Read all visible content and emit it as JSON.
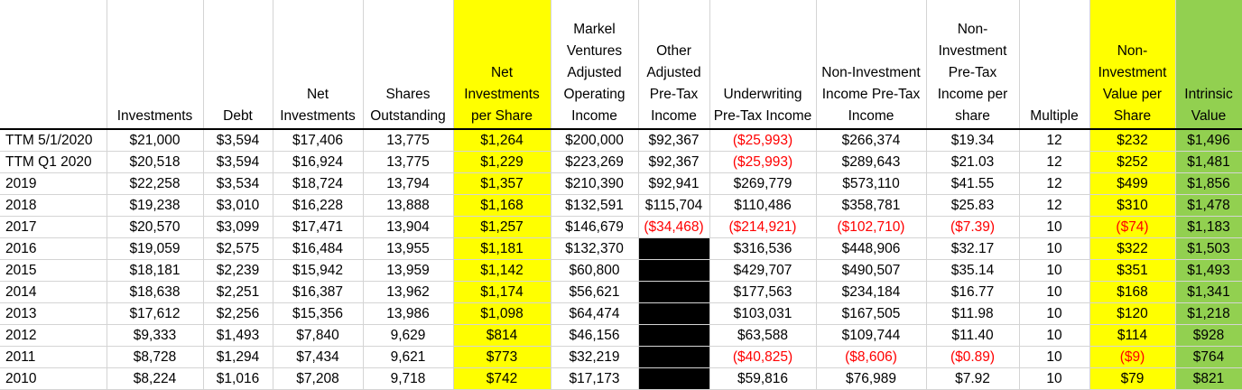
{
  "colors": {
    "highlight_yellow": "#ffff00",
    "highlight_green": "#92d050",
    "negative_text": "#ff0000",
    "blank_black": "#000000"
  },
  "columns": [
    {
      "key": "period",
      "header": ""
    },
    {
      "key": "investments",
      "header": "Investments"
    },
    {
      "key": "debt",
      "header": "Debt"
    },
    {
      "key": "net_investments",
      "header": "Net Investments"
    },
    {
      "key": "shares_outstanding",
      "header": "Shares Outstanding"
    },
    {
      "key": "net_inv_per_share",
      "header": "Net Investments per Share"
    },
    {
      "key": "markel_ventures",
      "header": "Markel Ventures Adjusted Operating Income"
    },
    {
      "key": "other_adjusted",
      "header": "Other Adjusted Pre-Tax Income"
    },
    {
      "key": "underwriting",
      "header": "Underwriting Pre-Tax Income"
    },
    {
      "key": "non_inv_income",
      "header": "Non-Investment Income Pre-Tax Income"
    },
    {
      "key": "non_inv_per_share",
      "header": "Non-Investment Pre-Tax Income per share"
    },
    {
      "key": "multiple",
      "header": "Multiple"
    },
    {
      "key": "non_inv_value_per_share",
      "header": "Non-Investment Value per Share"
    },
    {
      "key": "intrinsic_value",
      "header": "Intrinsic Value"
    }
  ],
  "rows": [
    {
      "cells": [
        "TTM 5/1/2020",
        "$21,000",
        "$3,594",
        "$17,406",
        "13,775",
        "$1,264",
        "$200,000",
        "$92,367",
        "($25,993)",
        "$266,374",
        "$19.34",
        "12",
        "$232",
        "$1,496"
      ]
    },
    {
      "cells": [
        "TTM Q1 2020",
        "$20,518",
        "$3,594",
        "$16,924",
        "13,775",
        "$1,229",
        "$223,269",
        "$92,367",
        "($25,993)",
        "$289,643",
        "$21.03",
        "12",
        "$252",
        "$1,481"
      ]
    },
    {
      "cells": [
        "2019",
        "$22,258",
        "$3,534",
        "$18,724",
        "13,794",
        "$1,357",
        "$210,390",
        "$92,941",
        "$269,779",
        "$573,110",
        "$41.55",
        "12",
        "$499",
        "$1,856"
      ]
    },
    {
      "cells": [
        "2018",
        "$19,238",
        "$3,010",
        "$16,228",
        "13,888",
        "$1,168",
        "$132,591",
        "$115,704",
        "$110,486",
        "$358,781",
        "$25.83",
        "12",
        "$310",
        "$1,478"
      ]
    },
    {
      "cells": [
        "2017",
        "$20,570",
        "$3,099",
        "$17,471",
        "13,904",
        "$1,257",
        "$146,679",
        "($34,468)",
        "($214,921)",
        "($102,710)",
        "($7.39)",
        "10",
        "($74)",
        "$1,183"
      ]
    },
    {
      "cells": [
        "2016",
        "$19,059",
        "$2,575",
        "$16,484",
        "13,955",
        "$1,181",
        "$132,370",
        "",
        "$316,536",
        "$448,906",
        "$32.17",
        "10",
        "$322",
        "$1,503"
      ]
    },
    {
      "cells": [
        "2015",
        "$18,181",
        "$2,239",
        "$15,942",
        "13,959",
        "$1,142",
        "$60,800",
        "",
        "$429,707",
        "$490,507",
        "$35.14",
        "10",
        "$351",
        "$1,493"
      ]
    },
    {
      "cells": [
        "2014",
        "$18,638",
        "$2,251",
        "$16,387",
        "13,962",
        "$1,174",
        "$56,621",
        "",
        "$177,563",
        "$234,184",
        "$16.77",
        "10",
        "$168",
        "$1,341"
      ]
    },
    {
      "cells": [
        "2013",
        "$17,612",
        "$2,256",
        "$15,356",
        "13,986",
        "$1,098",
        "$64,474",
        "",
        "$103,031",
        "$167,505",
        "$11.98",
        "10",
        "$120",
        "$1,218"
      ]
    },
    {
      "cells": [
        "2012",
        "$9,333",
        "$1,493",
        "$7,840",
        "9,629",
        "$814",
        "$46,156",
        "",
        "$63,588",
        "$109,744",
        "$11.40",
        "10",
        "$114",
        "$928"
      ]
    },
    {
      "cells": [
        "2011",
        "$8,728",
        "$1,294",
        "$7,434",
        "9,621",
        "$773",
        "$32,219",
        "",
        "($40,825)",
        "($8,606)",
        "($0.89)",
        "10",
        "($9)",
        "$764"
      ]
    },
    {
      "cells": [
        "2010",
        "$8,224",
        "$1,016",
        "$7,208",
        "9,718",
        "$742",
        "$17,173",
        "",
        "$59,816",
        "$76,989",
        "$7.92",
        "10",
        "$79",
        "$821"
      ]
    }
  ]
}
